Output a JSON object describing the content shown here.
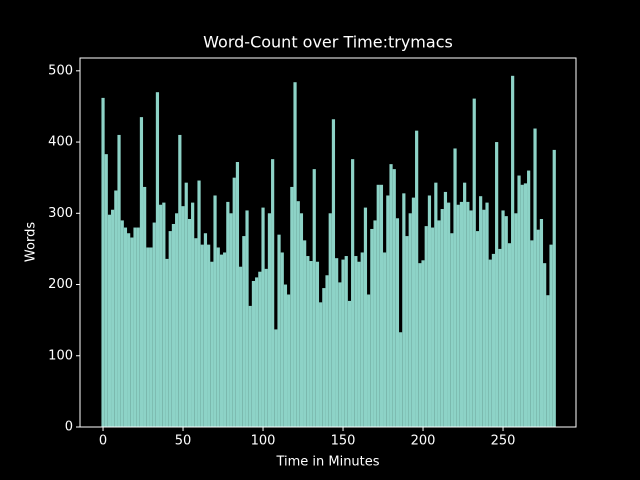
{
  "chart_data": {
    "type": "bar",
    "title": "Word-Count over Time:trymacs",
    "x_label": "Time in Minutes",
    "y_label": "Words",
    "x": [
      0,
      2,
      4,
      6,
      8,
      10,
      12,
      14,
      16,
      18,
      20,
      22,
      24,
      26,
      28,
      30,
      32,
      34,
      36,
      38,
      40,
      42,
      44,
      46,
      48,
      50,
      52,
      54,
      56,
      58,
      60,
      62,
      64,
      66,
      68,
      70,
      72,
      74,
      76,
      78,
      80,
      82,
      84,
      86,
      88,
      90,
      92,
      94,
      96,
      98,
      100,
      102,
      104,
      106,
      108,
      110,
      112,
      114,
      116,
      118,
      120,
      122,
      124,
      126,
      128,
      130,
      132,
      134,
      136,
      138,
      140,
      142,
      144,
      146,
      148,
      150,
      152,
      154,
      156,
      158,
      160,
      162,
      164,
      166,
      168,
      170,
      172,
      174,
      176,
      178,
      180,
      182,
      184,
      186,
      188,
      190,
      192,
      194,
      196,
      198,
      200,
      202,
      204,
      206,
      208,
      210,
      212,
      214,
      216,
      218,
      220,
      222,
      224,
      226,
      228,
      230,
      232,
      234,
      236,
      238,
      240,
      242,
      244,
      246,
      248,
      250,
      252,
      254,
      256,
      258,
      260,
      262,
      264,
      266,
      268,
      270,
      272,
      274,
      276,
      278,
      280,
      282
    ],
    "values": [
      462,
      383,
      298,
      305,
      332,
      410,
      290,
      280,
      272,
      266,
      280,
      280,
      435,
      337,
      252,
      252,
      287,
      470,
      312,
      315,
      236,
      275,
      285,
      300,
      410,
      310,
      343,
      292,
      315,
      265,
      346,
      256,
      272,
      256,
      232,
      325,
      252,
      242,
      245,
      316,
      300,
      350,
      372,
      225,
      268,
      304,
      170,
      205,
      210,
      218,
      308,
      222,
      300,
      376,
      137,
      270,
      245,
      200,
      186,
      337,
      484,
      317,
      300,
      262,
      240,
      233,
      362,
      232,
      175,
      195,
      213,
      300,
      432,
      237,
      203,
      235,
      240,
      177,
      376,
      240,
      232,
      245,
      308,
      186,
      278,
      290,
      340,
      340,
      245,
      325,
      369,
      362,
      293,
      133,
      328,
      268,
      300,
      322,
      416,
      230,
      234,
      282,
      325,
      280,
      343,
      290,
      306,
      330,
      315,
      272,
      391,
      312,
      316,
      343,
      316,
      304,
      461,
      275,
      324,
      305,
      315,
      235,
      243,
      400,
      250,
      304,
      296,
      258,
      493,
      300,
      353,
      340,
      342,
      360,
      262,
      419,
      277,
      292,
      230,
      185,
      256,
      389
    ],
    "bar_width": 2,
    "color": "#8dd3c7",
    "xlim": [
      -14.4,
      295.6
    ],
    "xticks": [
      0,
      50,
      100,
      150,
      200,
      250
    ],
    "ylim": [
      0,
      518
    ],
    "yticks": [
      0,
      100,
      200,
      300,
      400,
      500
    ]
  }
}
